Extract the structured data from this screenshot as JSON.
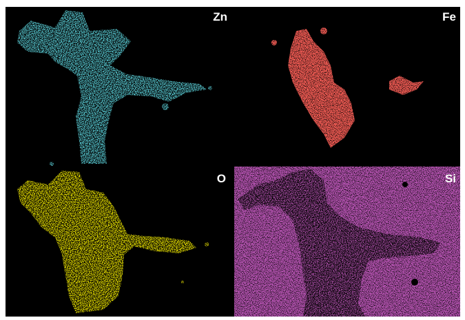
{
  "panels": [
    {
      "label": "Zn"
    },
    {
      "label": "Fe"
    },
    {
      "label": "O"
    },
    {
      "label": "Si"
    }
  ]
}
